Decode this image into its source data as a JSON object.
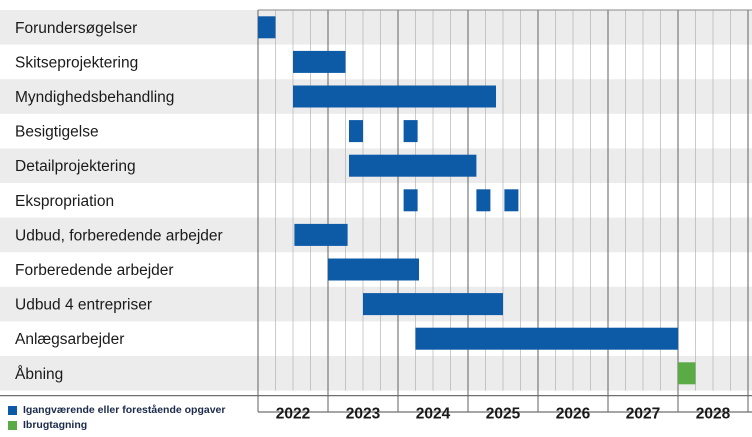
{
  "chart_data": {
    "type": "gantt",
    "x_axis": {
      "start": 2022,
      "end": 2029,
      "tick_labels": [
        "2022",
        "2023",
        "2024",
        "2025",
        "2026",
        "2027",
        "2028"
      ]
    },
    "tasks": [
      {
        "label": "Forundersøgelser",
        "bars": [
          [
            2022.25,
            2022.0
          ]
        ]
      },
      {
        "label": "Skitseprojektering",
        "bars": [
          [
            2022.5,
            2023.25
          ]
        ]
      },
      {
        "label": "Myndighedsbehandling",
        "bars": [
          [
            2022.5,
            2025.4
          ]
        ]
      },
      {
        "label": "Besigtigelse",
        "bars": [
          [
            2023.3,
            2023.5
          ],
          [
            2024.08,
            2024.25
          ]
        ]
      },
      {
        "label": "Detailprojektering",
        "bars": [
          [
            2023.3,
            2025.12
          ]
        ]
      },
      {
        "label": "Ekspropriation",
        "bars": [
          [
            2024.08,
            2024.25
          ],
          [
            2025.12,
            2025.28
          ],
          [
            2025.52,
            2025.67
          ]
        ]
      },
      {
        "label": "Udbud, forberedende arbejder",
        "bars": [
          [
            2022.52,
            2023.28
          ]
        ]
      },
      {
        "label": "Forberedende arbejder",
        "bars": [
          [
            2023.0,
            2024.3
          ]
        ]
      },
      {
        "label": "Udbud 4 entrepriser",
        "bars": [
          [
            2023.5,
            2025.5
          ]
        ]
      },
      {
        "label": "Anlægsarbejder",
        "bars": [
          [
            2024.25,
            2028.0
          ]
        ]
      },
      {
        "label": "Åbning",
        "bars": [
          [
            2028.0,
            2028.25
          ]
        ],
        "category": "opening"
      }
    ],
    "legend": [
      {
        "label": "Igangværende eller forestående opgaver",
        "color": "#0d5aa7"
      },
      {
        "label": "Ibrugtagning",
        "color": "#5aaa46"
      }
    ],
    "colors": {
      "ongoing": "#0d5aa7",
      "opening": "#5aaa46",
      "stripe": "#ececec",
      "grid": "#a8a8a8"
    }
  }
}
